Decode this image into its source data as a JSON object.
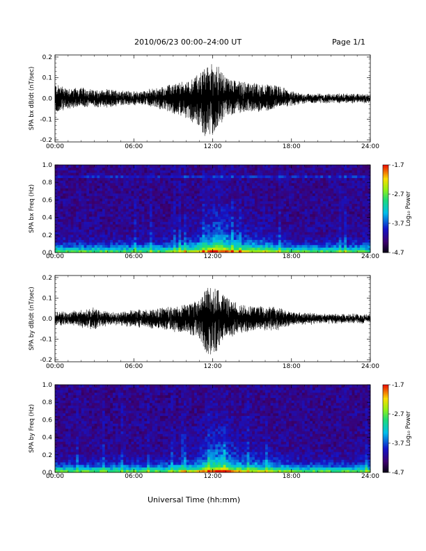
{
  "header": {
    "title": "2010/06/23  00:00–24:00 UT",
    "page": "Page 1/1"
  },
  "footer": {
    "xlabel": "Universal Time (hh:mm)"
  },
  "colorbar": {
    "ticks": [
      "-1.7",
      "-2.7",
      "-3.7",
      "-4.7"
    ],
    "label": "Log₁₀ Power"
  },
  "colors": {
    "trace": "#000000"
  },
  "chart_data": [
    {
      "type": "line",
      "ylabel": "SPA bx dB/dt (nT/sec)",
      "xticks": [
        "00:00",
        "06:00",
        "12:00",
        "18:00",
        "24:00"
      ],
      "yticks": [
        "0.2",
        "0.1",
        "0.0",
        "-0.1",
        "-0.2"
      ],
      "xlim": [
        0,
        24
      ],
      "ylim": [
        -0.21,
        0.21
      ],
      "series": [
        {
          "x": [
            0,
            1,
            2,
            3,
            4,
            5,
            6,
            7,
            8,
            9,
            10,
            11,
            11.5,
            12,
            12.5,
            13,
            14,
            15,
            16,
            17,
            18,
            19,
            20,
            21,
            22,
            23,
            24
          ],
          "y_max": [
            0.07,
            0.05,
            0.05,
            0.04,
            0.04,
            0.04,
            0.03,
            0.04,
            0.05,
            0.07,
            0.08,
            0.12,
            0.15,
            0.17,
            0.15,
            0.1,
            0.09,
            0.07,
            0.07,
            0.06,
            0.03,
            0.02,
            0.02,
            0.02,
            0.02,
            0.02,
            0.02
          ],
          "y_min": [
            -0.07,
            -0.05,
            -0.04,
            -0.04,
            -0.04,
            -0.03,
            -0.03,
            -0.03,
            -0.05,
            -0.07,
            -0.09,
            -0.14,
            -0.2,
            -0.18,
            -0.13,
            -0.09,
            -0.07,
            -0.06,
            -0.06,
            -0.04,
            -0.03,
            -0.02,
            -0.02,
            -0.02,
            -0.02,
            -0.02,
            -0.02
          ]
        }
      ]
    },
    {
      "type": "heatmap",
      "ylabel": "SPA bx Freq (Hz)",
      "xticks": [
        "00:00",
        "06:00",
        "12:00",
        "18:00",
        "24:00"
      ],
      "yticks": [
        "1.0",
        "0.8",
        "0.6",
        "0.4",
        "0.2",
        "0.0"
      ],
      "xlim": [
        0,
        24
      ],
      "ylim": [
        0,
        1.0
      ],
      "zlim": [
        -4.7,
        -1.7
      ]
    },
    {
      "type": "line",
      "ylabel": "SPA by dB/dt (nT/sec)",
      "xticks": [
        "00:00",
        "06:00",
        "12:00",
        "18:00",
        "24:00"
      ],
      "yticks": [
        "0.2",
        "0.1",
        "0.0",
        "-0.1",
        "-0.2"
      ],
      "xlim": [
        0,
        24
      ],
      "ylim": [
        -0.21,
        0.21
      ],
      "series": [
        {
          "x": [
            0,
            1,
            2,
            3,
            4,
            5,
            6,
            7,
            8,
            9,
            10,
            11,
            11.5,
            12,
            12.5,
            13,
            14,
            15,
            16,
            17,
            18,
            19,
            20,
            21,
            22,
            23,
            24
          ],
          "y_max": [
            0.03,
            0.03,
            0.04,
            0.05,
            0.03,
            0.03,
            0.04,
            0.04,
            0.05,
            0.06,
            0.07,
            0.09,
            0.14,
            0.16,
            0.15,
            0.1,
            0.07,
            0.06,
            0.06,
            0.05,
            0.03,
            0.03,
            0.02,
            0.02,
            0.02,
            0.02,
            0.02
          ],
          "y_min": [
            -0.03,
            -0.03,
            -0.04,
            -0.05,
            -0.03,
            -0.03,
            -0.04,
            -0.04,
            -0.05,
            -0.06,
            -0.07,
            -0.1,
            -0.17,
            -0.18,
            -0.15,
            -0.1,
            -0.07,
            -0.06,
            -0.06,
            -0.05,
            -0.03,
            -0.03,
            -0.02,
            -0.02,
            -0.02,
            -0.02,
            -0.02
          ]
        }
      ]
    },
    {
      "type": "heatmap",
      "ylabel": "SPA by Freq (Hz)",
      "xticks": [
        "00:00",
        "06:00",
        "12:00",
        "18:00",
        "24:00"
      ],
      "yticks": [
        "1.0",
        "0.8",
        "0.6",
        "0.4",
        "0.2",
        "0.0"
      ],
      "xlim": [
        0,
        24
      ],
      "ylim": [
        0,
        1.0
      ],
      "zlim": [
        -4.7,
        -1.7
      ]
    }
  ]
}
